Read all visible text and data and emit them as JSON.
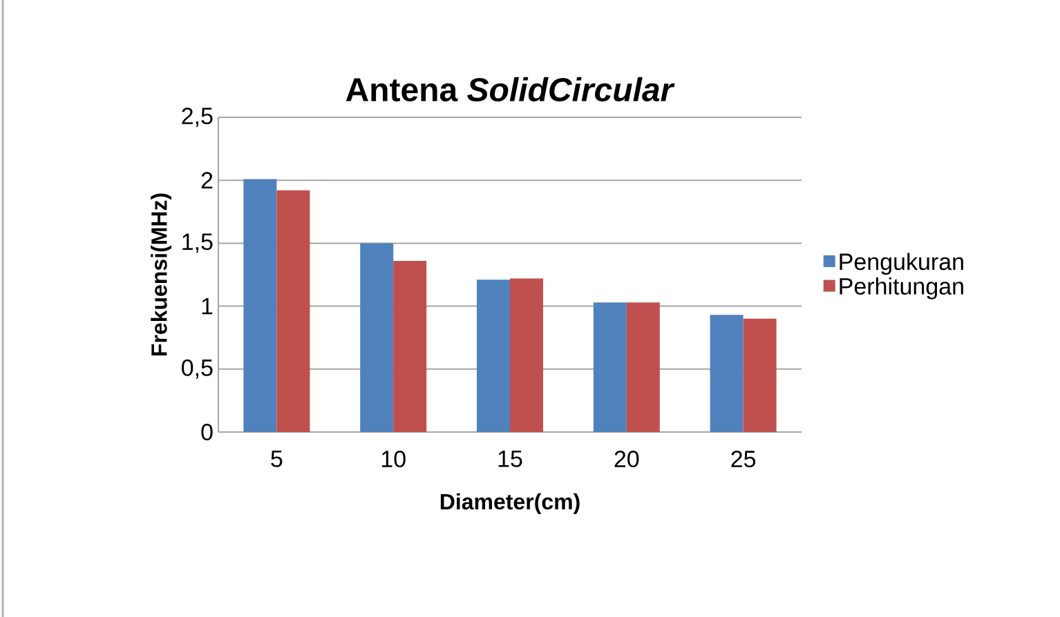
{
  "chart_data": {
    "type": "bar",
    "title": "Antena *SolidCircular*",
    "xlabel": "Diameter(cm)",
    "ylabel": "Frekuensi(MHz)",
    "categories": [
      "5",
      "10",
      "15",
      "20",
      "25"
    ],
    "series": [
      {
        "name": "Pengukuran",
        "color": "#4f81bd",
        "values": [
          2.01,
          1.5,
          1.21,
          1.03,
          0.93
        ]
      },
      {
        "name": "Perhitungan",
        "color": "#c0504d",
        "values": [
          1.92,
          1.36,
          1.22,
          1.03,
          0.9
        ]
      }
    ],
    "ylim": [
      0,
      2.5
    ],
    "yticks": [
      0,
      {
        "value": 0.5,
        "label": "0,5"
      },
      1,
      {
        "value": 1.5,
        "label": "1,5"
      },
      2,
      {
        "value": 2.5,
        "label": "2,5"
      }
    ],
    "grid": "y",
    "legend": "right"
  }
}
